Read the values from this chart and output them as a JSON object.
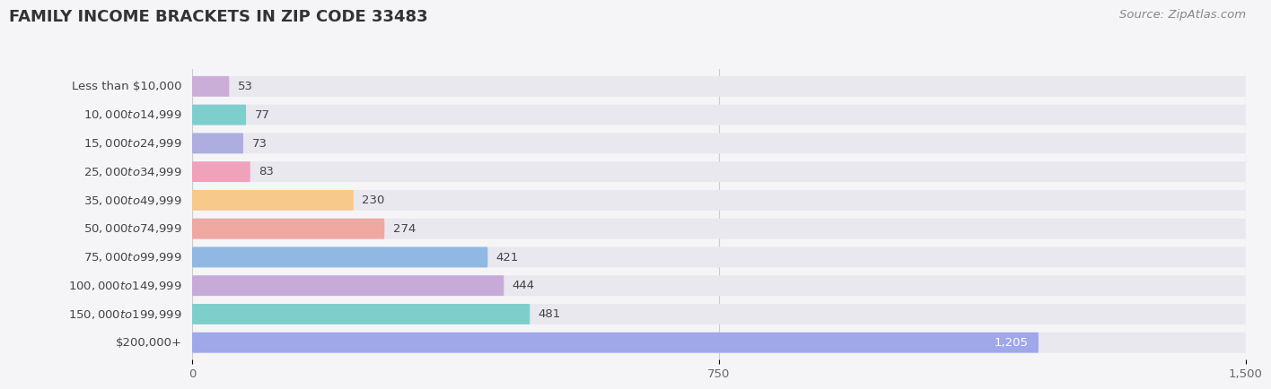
{
  "title": "FAMILY INCOME BRACKETS IN ZIP CODE 33483",
  "source": "Source: ZipAtlas.com",
  "categories": [
    "Less than $10,000",
    "$10,000 to $14,999",
    "$15,000 to $24,999",
    "$25,000 to $34,999",
    "$35,000 to $49,999",
    "$50,000 to $74,999",
    "$75,000 to $99,999",
    "$100,000 to $149,999",
    "$150,000 to $199,999",
    "$200,000+"
  ],
  "values": [
    53,
    77,
    73,
    83,
    230,
    274,
    421,
    444,
    481,
    1205
  ],
  "bar_colors": [
    "#cbaed8",
    "#7ecece",
    "#adaddf",
    "#f0a2bb",
    "#f7c98a",
    "#f0a8a2",
    "#90b8e2",
    "#c8aad8",
    "#7ecfcc",
    "#a0a8ea"
  ],
  "background_color": "#f5f5f8",
  "bar_background_color": "#e8e8ee",
  "xlim": [
    0,
    1500
  ],
  "xticks": [
    0,
    750,
    1500
  ],
  "title_fontsize": 13,
  "label_fontsize": 9.5,
  "value_fontsize": 9.5,
  "source_fontsize": 9.5
}
